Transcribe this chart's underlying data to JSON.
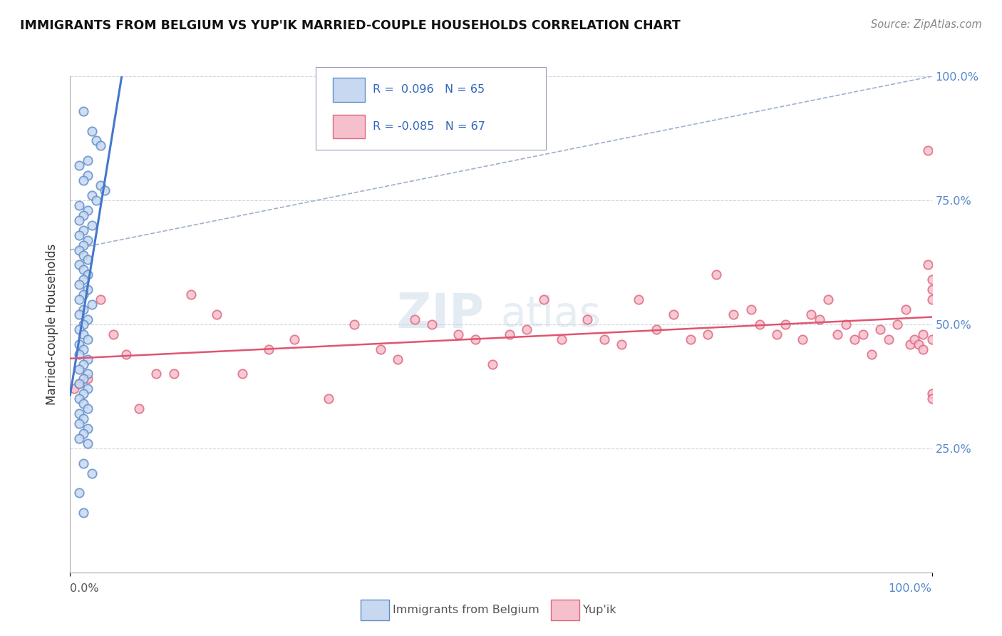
{
  "title": "IMMIGRANTS FROM BELGIUM VS YUP'IK MARRIED-COUPLE HOUSEHOLDS CORRELATION CHART",
  "source": "Source: ZipAtlas.com",
  "ylabel": "Married-couple Households",
  "legend_label1": "Immigrants from Belgium",
  "legend_label2": "Yup'ik",
  "r1": 0.096,
  "n1": 65,
  "r2": -0.085,
  "n2": 67,
  "blue_fill": "#c8d8f0",
  "pink_fill": "#f5c0cc",
  "blue_edge": "#6090cc",
  "pink_edge": "#e06880",
  "blue_line_color": "#4477cc",
  "pink_line_color": "#e05570",
  "dash_line_color": "#a0b0cc",
  "watermark_color": "#c8d8e8",
  "background_color": "#ffffff",
  "grid_color": "#c8d0d8",
  "marker_size": 80,
  "blue_x": [
    1.5,
    2.5,
    3.0,
    3.5,
    2.0,
    1.0,
    2.0,
    1.5,
    3.5,
    4.0,
    2.5,
    3.0,
    1.0,
    2.0,
    1.5,
    1.0,
    2.5,
    1.5,
    1.0,
    2.0,
    1.5,
    1.0,
    1.5,
    2.0,
    1.0,
    1.5,
    2.0,
    1.5,
    1.0,
    2.0,
    1.5,
    1.0,
    2.5,
    1.5,
    1.0,
    2.0,
    1.5,
    1.0,
    1.5,
    2.0,
    1.0,
    1.5,
    1.0,
    2.0,
    1.5,
    1.0,
    2.0,
    1.5,
    1.0,
    2.0,
    1.5,
    1.0,
    1.5,
    2.0,
    1.0,
    1.5,
    1.0,
    2.0,
    1.5,
    1.0,
    2.0,
    1.5,
    2.5,
    1.0,
    1.5
  ],
  "blue_y": [
    93,
    89,
    87,
    86,
    83,
    82,
    80,
    79,
    78,
    77,
    76,
    75,
    74,
    73,
    72,
    71,
    70,
    69,
    68,
    67,
    66,
    65,
    64,
    63,
    62,
    61,
    60,
    59,
    58,
    57,
    56,
    55,
    54,
    53,
    52,
    51,
    50,
    49,
    48,
    47,
    46,
    45,
    44,
    43,
    42,
    41,
    40,
    39,
    38,
    37,
    36,
    35,
    34,
    33,
    32,
    31,
    30,
    29,
    28,
    27,
    26,
    22,
    20,
    16,
    12
  ],
  "pink_x": [
    0.5,
    1.0,
    2.0,
    3.5,
    5.0,
    6.5,
    8.0,
    10.0,
    12.0,
    14.0,
    17.0,
    20.0,
    23.0,
    26.0,
    30.0,
    33.0,
    36.0,
    38.0,
    40.0,
    42.0,
    45.0,
    47.0,
    49.0,
    51.0,
    53.0,
    55.0,
    57.0,
    60.0,
    62.0,
    64.0,
    66.0,
    68.0,
    70.0,
    72.0,
    74.0,
    75.0,
    77.0,
    79.0,
    80.0,
    82.0,
    83.0,
    85.0,
    86.0,
    87.0,
    88.0,
    89.0,
    90.0,
    91.0,
    92.0,
    93.0,
    94.0,
    95.0,
    96.0,
    97.0,
    97.5,
    98.0,
    98.5,
    99.0,
    99.0,
    99.5,
    99.5,
    100.0,
    100.0,
    100.0,
    100.0,
    100.0,
    100.0
  ],
  "pink_y": [
    37,
    38,
    39,
    55,
    48,
    44,
    33,
    40,
    40,
    56,
    52,
    40,
    45,
    47,
    35,
    50,
    45,
    43,
    51,
    50,
    48,
    47,
    42,
    48,
    49,
    55,
    47,
    51,
    47,
    46,
    55,
    49,
    52,
    47,
    48,
    60,
    52,
    53,
    50,
    48,
    50,
    47,
    52,
    51,
    55,
    48,
    50,
    47,
    48,
    44,
    49,
    47,
    50,
    53,
    46,
    47,
    46,
    45,
    48,
    85,
    62,
    55,
    59,
    57,
    47,
    36,
    35
  ],
  "ylim": [
    0,
    100
  ],
  "xlim": [
    0,
    100
  ],
  "yticks": [
    0,
    25,
    50,
    75,
    100
  ]
}
